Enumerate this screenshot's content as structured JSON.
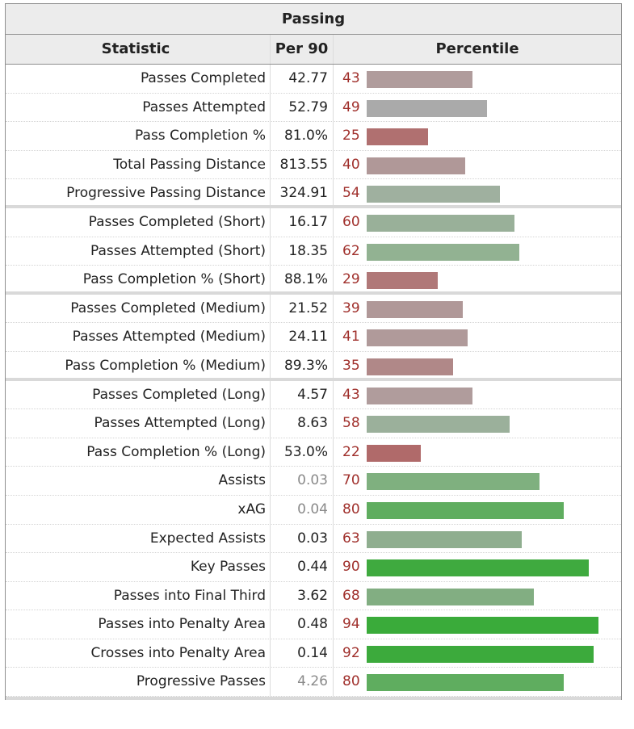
{
  "title": "Passing",
  "headers": {
    "stat": "Statistic",
    "per90": "Per 90",
    "percentile": "Percentile"
  },
  "rows": [
    {
      "stat": "Passes Completed",
      "per90": "42.77",
      "pct": 43,
      "color": "#b09c9c"
    },
    {
      "stat": "Passes Attempted",
      "per90": "52.79",
      "pct": 49,
      "color": "#aaaaaa"
    },
    {
      "stat": "Pass Completion %",
      "per90": "81.0%",
      "pct": 25,
      "color": "#b07070"
    },
    {
      "stat": "Total Passing Distance",
      "per90": "813.55",
      "pct": 40,
      "color": "#b09898"
    },
    {
      "stat": "Progressive Passing Distance",
      "per90": "324.91",
      "pct": 54,
      "color": "#9fb09f",
      "sep": true
    },
    {
      "stat": "Passes Completed (Short)",
      "per90": "16.17",
      "pct": 60,
      "color": "#99b099"
    },
    {
      "stat": "Passes Attempted (Short)",
      "per90": "18.35",
      "pct": 62,
      "color": "#92b292"
    },
    {
      "stat": "Pass Completion % (Short)",
      "per90": "88.1%",
      "pct": 29,
      "color": "#b07878",
      "sep": true
    },
    {
      "stat": "Passes Completed (Medium)",
      "per90": "21.52",
      "pct": 39,
      "color": "#b09898"
    },
    {
      "stat": "Passes Attempted (Medium)",
      "per90": "24.11",
      "pct": 41,
      "color": "#b09a9a"
    },
    {
      "stat": "Pass Completion % (Medium)",
      "per90": "89.3%",
      "pct": 35,
      "color": "#b08888",
      "sep": true
    },
    {
      "stat": "Passes Completed (Long)",
      "per90": "4.57",
      "pct": 43,
      "color": "#b09c9c"
    },
    {
      "stat": "Passes Attempted (Long)",
      "per90": "8.63",
      "pct": 58,
      "color": "#9bb09b"
    },
    {
      "stat": "Pass Completion % (Long)",
      "per90": "53.0%",
      "pct": 22,
      "color": "#b06a6a"
    },
    {
      "stat": "Assists",
      "per90": "0.03",
      "pct": 70,
      "color": "#7fb07f",
      "muted": true
    },
    {
      "stat": "xAG",
      "per90": "0.04",
      "pct": 80,
      "color": "#5fad5f",
      "muted": true
    },
    {
      "stat": "Expected Assists",
      "per90": "0.03",
      "pct": 63,
      "color": "#8fae8f"
    },
    {
      "stat": "Key Passes",
      "per90": "0.44",
      "pct": 90,
      "color": "#3faa3f"
    },
    {
      "stat": "Passes into Final Third",
      "per90": "3.62",
      "pct": 68,
      "color": "#82ae82"
    },
    {
      "stat": "Passes into Penalty Area",
      "per90": "0.48",
      "pct": 94,
      "color": "#3aab3a"
    },
    {
      "stat": "Crosses into Penalty Area",
      "per90": "0.14",
      "pct": 92,
      "color": "#3caa3c"
    },
    {
      "stat": "Progressive Passes",
      "per90": "4.26",
      "pct": 80,
      "color": "#5fad5f",
      "muted": true
    }
  ]
}
